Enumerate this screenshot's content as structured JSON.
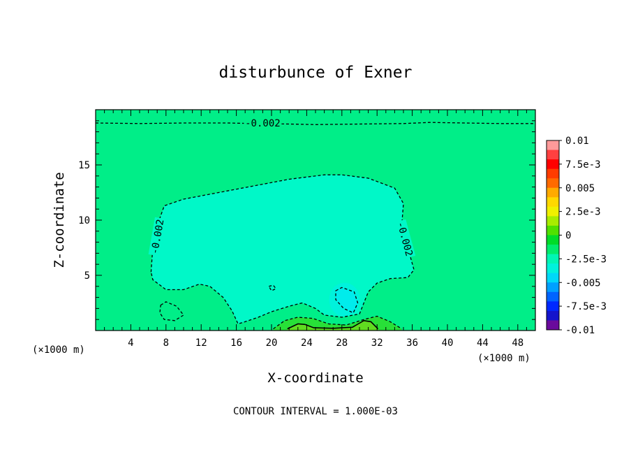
{
  "chart_data": {
    "type": "heatmap",
    "title": "disturbunce of Exner",
    "xlabel": "X-coordinate",
    "ylabel": "Z-coordinate",
    "x_unit": "(×1000 m)",
    "footer": "CONTOUR INTERVAL = 1.000E-03",
    "xlim": [
      0,
      50
    ],
    "ylim": [
      0,
      20
    ],
    "xticks": [
      4,
      8,
      12,
      16,
      20,
      24,
      28,
      32,
      36,
      40,
      44,
      48
    ],
    "yticks": [
      5,
      10,
      15
    ],
    "colorbar": {
      "range": [
        -0.01,
        0.01
      ],
      "labels": [
        "0.01",
        "7.5e-3",
        "0.005",
        "2.5e-3",
        "0",
        "-2.5e-3",
        "-0.005",
        "-7.5e-3",
        "-0.01"
      ],
      "colors": [
        "#ff9a9a",
        "#ff4040",
        "#ff0000",
        "#ff3c00",
        "#ff6a00",
        "#ffaa00",
        "#ffd800",
        "#f0f000",
        "#a8ec00",
        "#50e000",
        "#00dc28",
        "#00ec6c",
        "#00f6b4",
        "#00f2dc",
        "#00d8f8",
        "#00a0ff",
        "#0064ff",
        "#0028ff",
        "#1414cc",
        "#6a0a9c"
      ]
    },
    "field": {
      "background_value": -0.0013,
      "background_color": "#00ee88",
      "anomaly_color": "#00f8c8",
      "deep_anomaly_color": "#00ecec",
      "positive_color": "#28e038",
      "strong_positive_color": "#60dc20"
    },
    "contours": [
      {
        "label": "-0.002",
        "style": "dashed",
        "points": [
          [
            0,
            18.8
          ],
          [
            5,
            18.75
          ],
          [
            10,
            18.8
          ],
          [
            15,
            18.8
          ],
          [
            18,
            18.75
          ],
          [
            22,
            18.7
          ],
          [
            25,
            18.65
          ],
          [
            30,
            18.7
          ],
          [
            35,
            18.75
          ],
          [
            38,
            18.85
          ],
          [
            42,
            18.8
          ],
          [
            46,
            18.75
          ],
          [
            50,
            18.75
          ]
        ]
      },
      {
        "label": "-0.002",
        "style": "dashed",
        "points": [
          [
            6.3,
            5.3
          ],
          [
            6.5,
            7.5
          ],
          [
            7,
            9.5
          ],
          [
            7.8,
            11.3
          ],
          [
            10,
            11.9
          ],
          [
            14,
            12.5
          ],
          [
            18,
            13.1
          ],
          [
            22,
            13.7
          ],
          [
            26,
            14.1
          ],
          [
            28,
            14.1
          ],
          [
            31,
            13.8
          ],
          [
            34,
            12.9
          ],
          [
            35,
            11.5
          ],
          [
            34.8,
            9.5
          ],
          [
            35.5,
            7.5
          ],
          [
            36.2,
            5.5
          ],
          [
            35.5,
            4.8
          ],
          [
            33.5,
            4.7
          ],
          [
            32,
            4.3
          ],
          [
            31,
            3.5
          ],
          [
            30.5,
            2.5
          ],
          [
            30,
            1.5
          ],
          [
            28,
            1.2
          ],
          [
            26,
            1.4
          ],
          [
            25,
            2
          ],
          [
            23.5,
            2.5
          ],
          [
            22,
            2.2
          ],
          [
            20,
            1.7
          ],
          [
            18.5,
            1.2
          ],
          [
            17,
            0.8
          ],
          [
            16.2,
            0.6
          ],
          [
            15.5,
            1.8
          ],
          [
            14.5,
            3
          ],
          [
            13,
            4
          ],
          [
            11.8,
            4.2
          ],
          [
            10,
            3.7
          ],
          [
            8,
            3.7
          ],
          [
            6.5,
            4.6
          ],
          [
            6.3,
            5.3
          ]
        ]
      },
      {
        "label": "",
        "style": "dashed",
        "points": [
          [
            7.4,
            2.3
          ],
          [
            8,
            2.6
          ],
          [
            9.2,
            2.2
          ],
          [
            10,
            1.4
          ],
          [
            9,
            0.9
          ],
          [
            7.8,
            1.0
          ],
          [
            7.3,
            1.6
          ],
          [
            7.4,
            2.3
          ]
        ]
      },
      {
        "label": "",
        "style": "dashed",
        "points": [
          [
            19.7,
            4
          ],
          [
            20.2,
            4.1
          ],
          [
            20.5,
            3.8
          ],
          [
            20,
            3.6
          ],
          [
            19.7,
            4
          ]
        ]
      },
      {
        "label": "",
        "style": "dashed",
        "points": [
          [
            27.3,
            3.6
          ],
          [
            28,
            3.9
          ],
          [
            29.4,
            3.5
          ],
          [
            29.8,
            2.5
          ],
          [
            29.3,
            1.6
          ],
          [
            28.2,
            2
          ],
          [
            27.3,
            2.8
          ],
          [
            27.3,
            3.6
          ]
        ]
      },
      {
        "label": "",
        "style": "dashed",
        "points": [
          [
            20.2,
            0.15
          ],
          [
            21.5,
            0.9
          ],
          [
            23,
            1.2
          ],
          [
            24.7,
            1.1
          ],
          [
            26.5,
            0.6
          ],
          [
            28.5,
            0.5
          ],
          [
            30.5,
            1.0
          ],
          [
            32,
            1.3
          ],
          [
            33.5,
            0.8
          ],
          [
            34.8,
            0.15
          ]
        ]
      },
      {
        "label": "",
        "style": "solid",
        "points": [
          [
            21.8,
            0.15
          ],
          [
            23,
            0.6
          ],
          [
            23.8,
            0.55
          ],
          [
            24.8,
            0.25
          ],
          [
            27,
            0.2
          ],
          [
            29.2,
            0.3
          ],
          [
            30.5,
            0.9
          ],
          [
            31.3,
            0.8
          ],
          [
            32.1,
            0.15
          ]
        ]
      }
    ]
  }
}
